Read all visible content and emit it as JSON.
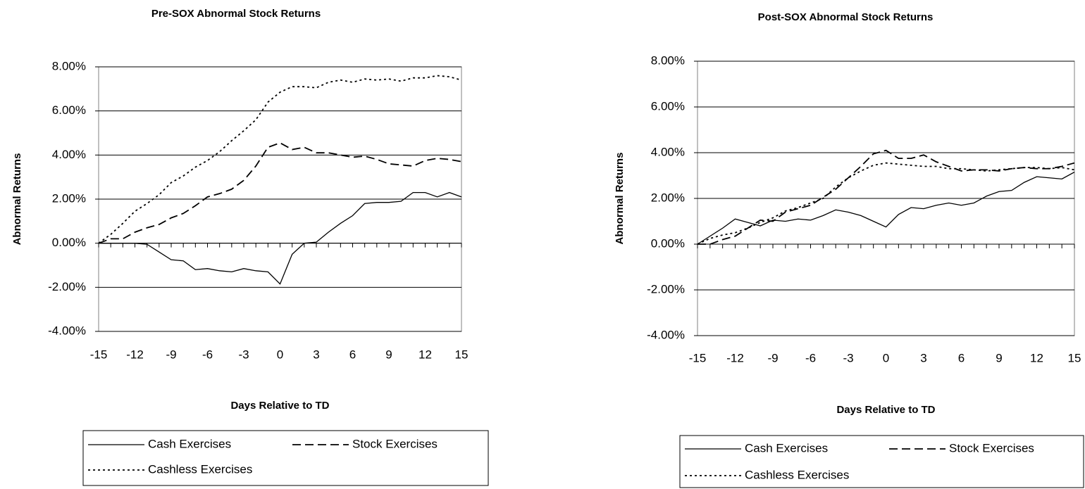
{
  "chart_data": [
    {
      "type": "line",
      "title": "Pre-SOX Abnormal Stock Returns",
      "x_label": "Days Relative to TD",
      "y_label": "Abnormal Returns",
      "x": [
        -15,
        -14,
        -13,
        -12,
        -11,
        -10,
        -9,
        -8,
        -7,
        -6,
        -5,
        -4,
        -3,
        -2,
        -1,
        0,
        1,
        2,
        3,
        4,
        5,
        6,
        7,
        8,
        9,
        10,
        11,
        12,
        13,
        14,
        15
      ],
      "xlim": [
        -15,
        15
      ],
      "xticks": [
        -15,
        -12,
        -9,
        -6,
        -3,
        0,
        3,
        6,
        9,
        12,
        15
      ],
      "ylim": [
        -4,
        8
      ],
      "yticks": [
        {
          "value": -4,
          "label": "-4.00%"
        },
        {
          "value": -2,
          "label": "-2.00%"
        },
        {
          "value": 0,
          "label": "0.00%"
        },
        {
          "value": 2,
          "label": "2.00%"
        },
        {
          "value": 4,
          "label": "4.00%"
        },
        {
          "value": 6,
          "label": "6.00%"
        },
        {
          "value": 8,
          "label": "8.00%"
        }
      ],
      "grid": true,
      "series": [
        {
          "name": "Cash Exercises",
          "color": "#000000",
          "style": "solid",
          "values": [
            0,
            0,
            0,
            0,
            -0.05,
            -0.4,
            -0.75,
            -0.8,
            -1.2,
            -1.15,
            -1.25,
            -1.3,
            -1.15,
            -1.25,
            -1.3,
            -1.85,
            -0.5,
            0,
            0.05,
            0.5,
            0.9,
            1.25,
            1.8,
            1.85,
            1.85,
            1.9,
            2.3,
            2.3,
            2.1,
            2.3,
            2.1
          ]
        },
        {
          "name": "Stock Exercises",
          "color": "#000000",
          "style": "dashed",
          "values": [
            0,
            0.2,
            0.2,
            0.5,
            0.7,
            0.85,
            1.15,
            1.35,
            1.7,
            2.1,
            2.25,
            2.45,
            2.85,
            3.5,
            4.35,
            4.55,
            4.25,
            4.35,
            4.1,
            4.1,
            4.0,
            3.9,
            3.95,
            3.8,
            3.6,
            3.55,
            3.5,
            3.75,
            3.85,
            3.8,
            3.7
          ]
        },
        {
          "name": "Cashless Exercises",
          "color": "#000000",
          "style": "dotted",
          "values": [
            0,
            0.4,
            0.9,
            1.45,
            1.8,
            2.2,
            2.75,
            3.05,
            3.45,
            3.75,
            4.15,
            4.65,
            5.1,
            5.6,
            6.4,
            6.85,
            7.1,
            7.1,
            7.05,
            7.3,
            7.4,
            7.3,
            7.45,
            7.4,
            7.45,
            7.35,
            7.5,
            7.5,
            7.6,
            7.55,
            7.4
          ]
        }
      ]
    },
    {
      "type": "line",
      "title": "Post-SOX Abnormal Stock Returns",
      "x_label": "Days Relative to TD",
      "y_label": "Abnormal Returns",
      "x": [
        -15,
        -14,
        -13,
        -12,
        -11,
        -10,
        -9,
        -8,
        -7,
        -6,
        -5,
        -4,
        -3,
        -2,
        -1,
        0,
        1,
        2,
        3,
        4,
        5,
        6,
        7,
        8,
        9,
        10,
        11,
        12,
        13,
        14,
        15
      ],
      "xlim": [
        -15,
        15
      ],
      "xticks": [
        -15,
        -12,
        -9,
        -6,
        -3,
        0,
        3,
        6,
        9,
        12,
        15
      ],
      "ylim": [
        -4,
        8
      ],
      "yticks": [
        {
          "value": -4,
          "label": "-4.00%"
        },
        {
          "value": -2,
          "label": "-2.00%"
        },
        {
          "value": 0,
          "label": "0.00%"
        },
        {
          "value": 2,
          "label": "2.00%"
        },
        {
          "value": 4,
          "label": "4.00%"
        },
        {
          "value": 6,
          "label": "6.00%"
        },
        {
          "value": 8,
          "label": "8.00%"
        }
      ],
      "grid": true,
      "series": [
        {
          "name": "Cash Exercises",
          "color": "#000000",
          "style": "solid",
          "values": [
            0,
            0.35,
            0.7,
            1.1,
            0.95,
            0.8,
            1.05,
            1.0,
            1.1,
            1.05,
            1.25,
            1.5,
            1.4,
            1.25,
            1.0,
            0.75,
            1.3,
            1.6,
            1.55,
            1.7,
            1.8,
            1.7,
            1.8,
            2.1,
            2.3,
            2.35,
            2.7,
            2.95,
            2.9,
            2.85,
            3.15
          ]
        },
        {
          "name": "Stock Exercises",
          "color": "#000000",
          "style": "dashed",
          "values": [
            0,
            0,
            0.2,
            0.35,
            0.7,
            1.05,
            1.0,
            1.4,
            1.55,
            1.7,
            2.05,
            2.4,
            2.9,
            3.4,
            3.95,
            4.1,
            3.75,
            3.75,
            3.9,
            3.6,
            3.4,
            3.2,
            3.25,
            3.25,
            3.2,
            3.3,
            3.35,
            3.3,
            3.3,
            3.4,
            3.55
          ]
        },
        {
          "name": "Cashless Exercises",
          "color": "#000000",
          "style": "dotted",
          "values": [
            0,
            0.25,
            0.4,
            0.5,
            0.7,
            0.95,
            1.15,
            1.45,
            1.6,
            1.8,
            2.0,
            2.5,
            2.9,
            3.2,
            3.45,
            3.55,
            3.5,
            3.45,
            3.4,
            3.4,
            3.3,
            3.3,
            3.25,
            3.2,
            3.25,
            3.3,
            3.35,
            3.35,
            3.3,
            3.35,
            3.25
          ]
        }
      ]
    }
  ]
}
